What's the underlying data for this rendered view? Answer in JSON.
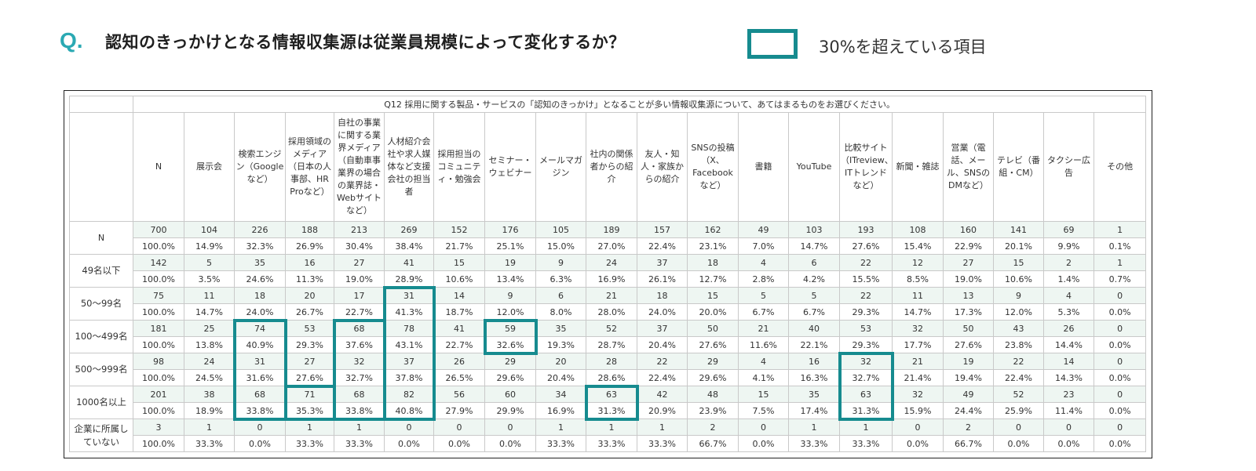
{
  "header": {
    "q_mark": "Q.",
    "title": "認知のきっかけとなる情報収集源は従業員規模によって変化するか？",
    "legend_label": "30%を超えている項目",
    "legend_color": "#168b8f"
  },
  "table": {
    "question": "Q12 採用に関する製品・サービスの「認知のきっかけ」となることが多い情報収集源について、あてはまるものをお選びください。",
    "columns": [
      "N",
      "展示会",
      "検索エンジン（Googleなど）",
      "採用領域のメディア（日本の人事部、HR Proなど）",
      "自社の事業に関する業界メディア（自動車事業界の場合の業界誌・Webサイトなど）",
      "人材紹介会社や求人媒体など支援会社の担当者",
      "採用担当のコミュニティ・勉強会",
      "セミナー・ウェビナー",
      "メールマガジン",
      "社内の関係者からの紹介",
      "友人・知人・家族からの紹介",
      "SNSの投稿（X、Facebookなど）",
      "書籍",
      "YouTube",
      "比較サイト（ITreview、ITトレンドなど）",
      "新聞・雑誌",
      "営業（電話、メール、SNSのDMなど）",
      "テレビ（番組・CM）",
      "タクシー広告",
      "その他"
    ],
    "rows": [
      {
        "label": "N",
        "n": [
          "700",
          "104",
          "226",
          "188",
          "213",
          "269",
          "152",
          "176",
          "105",
          "189",
          "157",
          "162",
          "49",
          "103",
          "193",
          "108",
          "160",
          "141",
          "69",
          "1"
        ],
        "p": [
          "100.0%",
          "14.9%",
          "32.3%",
          "26.9%",
          "30.4%",
          "38.4%",
          "21.7%",
          "25.1%",
          "15.0%",
          "27.0%",
          "22.4%",
          "23.1%",
          "7.0%",
          "14.7%",
          "27.6%",
          "15.4%",
          "22.9%",
          "20.1%",
          "9.9%",
          "0.1%"
        ]
      },
      {
        "label": "49名以下",
        "n": [
          "142",
          "5",
          "35",
          "16",
          "27",
          "41",
          "15",
          "19",
          "9",
          "24",
          "37",
          "18",
          "4",
          "6",
          "22",
          "12",
          "27",
          "15",
          "2",
          "1"
        ],
        "p": [
          "100.0%",
          "3.5%",
          "24.6%",
          "11.3%",
          "19.0%",
          "28.9%",
          "10.6%",
          "13.4%",
          "6.3%",
          "16.9%",
          "26.1%",
          "12.7%",
          "2.8%",
          "4.2%",
          "15.5%",
          "8.5%",
          "19.0%",
          "10.6%",
          "1.4%",
          "0.7%"
        ]
      },
      {
        "label": "50～99名",
        "n": [
          "75",
          "11",
          "18",
          "20",
          "17",
          "31",
          "14",
          "9",
          "6",
          "21",
          "18",
          "15",
          "5",
          "5",
          "22",
          "11",
          "13",
          "9",
          "4",
          "0"
        ],
        "p": [
          "100.0%",
          "14.7%",
          "24.0%",
          "26.7%",
          "22.7%",
          "41.3%",
          "18.7%",
          "12.0%",
          "8.0%",
          "28.0%",
          "24.0%",
          "20.0%",
          "6.7%",
          "6.7%",
          "29.3%",
          "14.7%",
          "17.3%",
          "12.0%",
          "5.3%",
          "0.0%"
        ]
      },
      {
        "label": "100～499名",
        "n": [
          "181",
          "25",
          "74",
          "53",
          "68",
          "78",
          "41",
          "59",
          "35",
          "52",
          "37",
          "50",
          "21",
          "40",
          "53",
          "32",
          "50",
          "43",
          "26",
          "0"
        ],
        "p": [
          "100.0%",
          "13.8%",
          "40.9%",
          "29.3%",
          "37.6%",
          "43.1%",
          "22.7%",
          "32.6%",
          "19.3%",
          "28.7%",
          "20.4%",
          "27.6%",
          "11.6%",
          "22.1%",
          "29.3%",
          "17.7%",
          "27.6%",
          "23.8%",
          "14.4%",
          "0.0%"
        ]
      },
      {
        "label": "500～999名",
        "n": [
          "98",
          "24",
          "31",
          "27",
          "32",
          "37",
          "26",
          "29",
          "20",
          "28",
          "22",
          "29",
          "4",
          "16",
          "32",
          "21",
          "19",
          "22",
          "14",
          "0"
        ],
        "p": [
          "100.0%",
          "24.5%",
          "31.6%",
          "27.6%",
          "32.7%",
          "37.8%",
          "26.5%",
          "29.6%",
          "20.4%",
          "28.6%",
          "22.4%",
          "29.6%",
          "4.1%",
          "16.3%",
          "32.7%",
          "21.4%",
          "19.4%",
          "22.4%",
          "14.3%",
          "0.0%"
        ]
      },
      {
        "label": "1000名以上",
        "n": [
          "201",
          "38",
          "68",
          "71",
          "68",
          "82",
          "56",
          "60",
          "34",
          "63",
          "42",
          "48",
          "15",
          "35",
          "63",
          "32",
          "49",
          "52",
          "23",
          "0"
        ],
        "p": [
          "100.0%",
          "18.9%",
          "33.8%",
          "35.3%",
          "33.8%",
          "40.8%",
          "27.9%",
          "29.9%",
          "16.9%",
          "31.3%",
          "20.9%",
          "23.9%",
          "7.5%",
          "17.4%",
          "31.3%",
          "15.9%",
          "24.4%",
          "25.9%",
          "11.4%",
          "0.0%"
        ]
      },
      {
        "label": "企業に所属していない",
        "n": [
          "3",
          "1",
          "0",
          "1",
          "1",
          "0",
          "0",
          "0",
          "1",
          "1",
          "1",
          "2",
          "0",
          "1",
          "1",
          "0",
          "2",
          "0",
          "0",
          "0"
        ],
        "p": [
          "100.0%",
          "33.3%",
          "0.0%",
          "33.3%",
          "33.3%",
          "0.0%",
          "0.0%",
          "0.0%",
          "33.3%",
          "33.3%",
          "33.3%",
          "66.7%",
          "0.0%",
          "33.3%",
          "33.3%",
          "0.0%",
          "66.7%",
          "0.0%",
          "0.0%",
          "0.0%"
        ]
      }
    ]
  }
}
